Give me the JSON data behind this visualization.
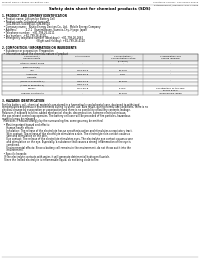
{
  "bg_color": "#ffffff",
  "header_left": "Product Name: Lithium Ion Battery Cell",
  "header_right_line1": "Substance number: 990-04819-00019",
  "header_right_line2": "Establishment / Revision: Dec.7.2009",
  "title": "Safety data sheet for chemical products (SDS)",
  "section1_title": "1. PRODUCT AND COMPANY IDENTIFICATION",
  "section1_lines": [
    "  • Product name: Lithium Ion Battery Cell",
    "  • Product code: Cylindrical-type cell",
    "      041-B6503, 041-B6502, 041-B6504",
    "  • Company name:   Nishio Energy Devices Co., Ltd.   Mobile Energy Company",
    "  • Address:            2-2-1   Kamimatsuen, Sumoto-City, Hyogo, Japan",
    "  • Telephone number:   +81-799-26-4111",
    "  • Fax number:   +81-799-26-4120",
    "  • Emergency telephone number (Weekdays): +81-799-26-2662",
    "                                              (Night and Holiday): +81-799-26-4120"
  ],
  "section2_title": "2. COMPOSITION / INFORMATION ON INGREDIENTS",
  "section2_sub": "  • Substance or preparation: Preparation",
  "section2_sub2": "  • Information about the chemical nature of product",
  "table_col_headers_row1": [
    "Component /",
    "CAS number",
    "Concentration /",
    "Classification and"
  ],
  "table_col_headers_row2": [
    "General name",
    "",
    "Concentration range",
    "hazard labeling"
  ],
  "table_col_headers_row3": [
    "",
    "",
    "(0-100%)",
    ""
  ],
  "table_rows": [
    [
      "Lithium cobalt oxide",
      "-",
      "-",
      "-"
    ],
    [
      "(LiMn-CoO2(x))",
      "",
      "",
      ""
    ],
    [
      "Iron",
      "7439-89-6",
      "15-25%",
      "-"
    ],
    [
      "Aluminum",
      "7429-90-5",
      "2-8%",
      "-"
    ],
    [
      "Graphite",
      "",
      "",
      ""
    ],
    [
      "(Made in graphite-1)",
      "7782-42-5",
      "10-20%",
      "-"
    ],
    [
      "(ATMs in graphite-2)",
      "7782-44-3",
      "",
      ""
    ],
    [
      "Copper",
      "7440-50-8",
      "5-10%",
      "Sensitization of the skin\ngroup R43.2"
    ],
    [
      "Organic electrolyte",
      "-",
      "10-20%",
      "Inflammable liquid"
    ]
  ],
  "section3_title": "3. HAZARDS IDENTIFICATION",
  "section3_lines": [
    "For this battery cell, chemical materials are stored in a hermetically sealed metal case, designed to withstand",
    "temperatures and pressure environments during its useful use. As a result, during normal use conditions, there is no",
    "physical change by evaporation or vaporization and there is no possibility of battery contents leakage.",
    "However, if exposed to a fire, added mechanical shocks, decomposition, extreme electrical misuse,",
    "the gas release control cap operates. The battery cell case will be preceded of fire particles, hazardous",
    "materials may be released.",
    "  Moreover, if heated strongly by the surrounding fire, some gas may be emitted."
  ],
  "section3_bullet1": "  • Most important hazard and effects:",
  "section3_health": "   Human health effects:",
  "section3_health_lines": [
    "      Inhalation: The release of the electrolyte has an anesthesia action and stimulates a respiratory tract.",
    "      Skin contact: The release of the electrolyte stimulates a skin. The electrolyte skin contact causes a",
    "      sore and stimulation on the skin.",
    "      Eye contact: The release of the electrolyte stimulates eyes. The electrolyte eye contact causes a sore",
    "      and stimulation on the eye. Especially, a substance that causes a strong inflammation of the eye is",
    "      combined.",
    "      Environmental effects: Since a battery cell remains in the environment, do not throw out it into the",
    "      environment."
  ],
  "section3_specific": "  • Specific hazards:",
  "section3_specific_lines": [
    "   If the electrolyte contacts with water, it will generate detrimental hydrogen fluoride.",
    "   Since the leaked electrolyte is inflammable liquid, do not bring close to fire."
  ]
}
